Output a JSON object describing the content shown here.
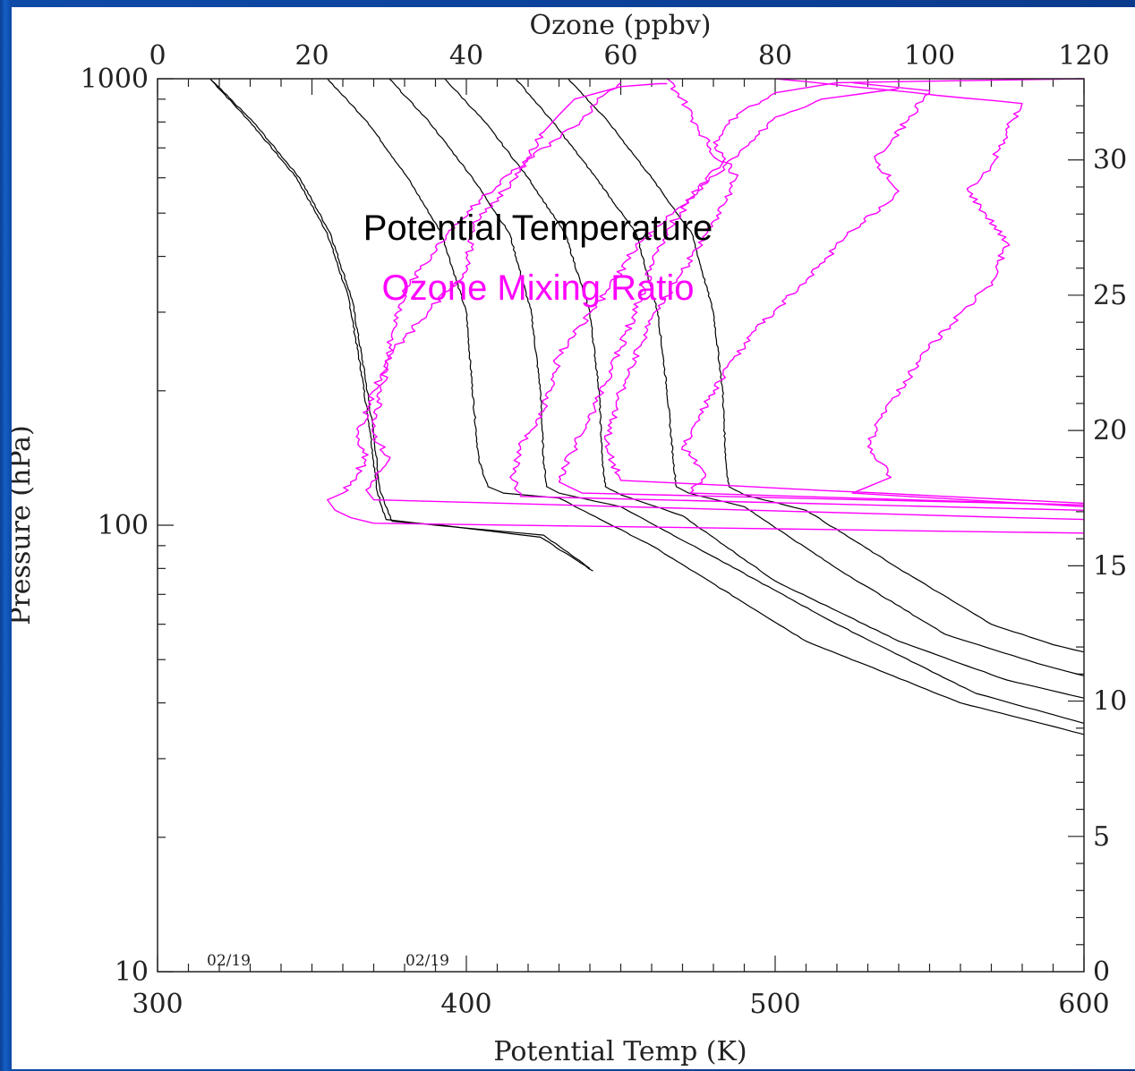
{
  "chart_data": {
    "type": "line",
    "title": "",
    "xlabel_bottom": "Potential Temp (K)",
    "xlabel_top": "Ozone (ppbv)",
    "ylabel_left": "Pressure (hPa)",
    "ylabel_right": "",
    "x_bottom_range": [
      300,
      600
    ],
    "x_bottom_ticks": [
      "300",
      "400",
      "500",
      "600"
    ],
    "x_top_range": [
      0,
      120
    ],
    "x_top_ticks": [
      "0",
      "20",
      "40",
      "60",
      "80",
      "100",
      "120"
    ],
    "y_left_scale": "log",
    "y_left_range": [
      1000,
      10
    ],
    "y_left_ticks": [
      "10",
      "100",
      "1000"
    ],
    "y_right_range": [
      0,
      33
    ],
    "y_right_ticks": [
      "0",
      "5",
      "10",
      "15",
      "20",
      "25",
      "30"
    ],
    "grid": false,
    "legend_placement": "top-center",
    "legend": [
      {
        "label": "Potential Temperature",
        "color": "#000000"
      },
      {
        "label": "Ozone Mixing Ratio",
        "color": "#ff00ff"
      }
    ],
    "annotations": [
      {
        "text": "02/19",
        "x": 322,
        "y": 1000
      },
      {
        "text": "02/19",
        "x": 388,
        "y": 1000
      }
    ],
    "series": [
      {
        "kind": "potential_temperature",
        "color": "#000000",
        "points": [
          [
            317,
            1000
          ],
          [
            330,
            800
          ],
          [
            345,
            600
          ],
          [
            355,
            450
          ],
          [
            362,
            320
          ],
          [
            366,
            220
          ],
          [
            369,
            160
          ],
          [
            371,
            120
          ],
          [
            374,
            103
          ],
          [
            390,
            100
          ],
          [
            425,
            95
          ],
          [
            440,
            80
          ]
        ]
      },
      {
        "kind": "potential_temperature",
        "color": "#000000",
        "points": [
          [
            317,
            1000
          ],
          [
            331,
            800
          ],
          [
            346,
            600
          ],
          [
            356,
            450
          ],
          [
            363,
            320
          ],
          [
            367,
            220
          ],
          [
            370,
            160
          ],
          [
            372,
            120
          ],
          [
            376,
            102
          ],
          [
            392,
            100
          ],
          [
            424,
            94
          ],
          [
            441,
            79
          ]
        ]
      },
      {
        "kind": "potential_temperature",
        "color": "#000000",
        "points": [
          [
            355,
            1000
          ],
          [
            368,
            800
          ],
          [
            381,
            600
          ],
          [
            392,
            450
          ],
          [
            400,
            300
          ],
          [
            402,
            200
          ],
          [
            404,
            140
          ],
          [
            407,
            122
          ],
          [
            412,
            118
          ],
          [
            430,
            115
          ],
          [
            460,
            90
          ],
          [
            510,
            55
          ],
          [
            560,
            40
          ],
          [
            600,
            34
          ]
        ]
      },
      {
        "kind": "potential_temperature",
        "color": "#000000",
        "points": [
          [
            375,
            1000
          ],
          [
            388,
            800
          ],
          [
            402,
            600
          ],
          [
            414,
            450
          ],
          [
            421,
            300
          ],
          [
            424,
            200
          ],
          [
            425,
            140
          ],
          [
            426,
            122
          ],
          [
            430,
            118
          ],
          [
            450,
            110
          ],
          [
            480,
            85
          ],
          [
            520,
            60
          ],
          [
            565,
            42
          ],
          [
            600,
            36
          ]
        ]
      },
      {
        "kind": "potential_temperature",
        "color": "#000000",
        "points": [
          [
            393,
            1000
          ],
          [
            406,
            800
          ],
          [
            420,
            600
          ],
          [
            432,
            450
          ],
          [
            440,
            300
          ],
          [
            443,
            200
          ],
          [
            444,
            140
          ],
          [
            445,
            122
          ],
          [
            450,
            117
          ],
          [
            470,
            105
          ],
          [
            500,
            75
          ],
          [
            540,
            55
          ],
          [
            575,
            45
          ],
          [
            600,
            41
          ]
        ]
      },
      {
        "kind": "potential_temperature",
        "color": "#000000",
        "points": [
          [
            416,
            1000
          ],
          [
            428,
            800
          ],
          [
            442,
            600
          ],
          [
            455,
            450
          ],
          [
            462,
            300
          ],
          [
            465,
            200
          ],
          [
            467,
            140
          ],
          [
            468,
            122
          ],
          [
            472,
            118
          ],
          [
            490,
            110
          ],
          [
            520,
            80
          ],
          [
            555,
            57
          ],
          [
            585,
            49
          ],
          [
            600,
            46
          ]
        ]
      },
      {
        "kind": "potential_temperature",
        "color": "#000000",
        "points": [
          [
            433,
            1000
          ],
          [
            446,
            800
          ],
          [
            460,
            600
          ],
          [
            473,
            450
          ],
          [
            480,
            300
          ],
          [
            483,
            200
          ],
          [
            484,
            140
          ],
          [
            485,
            122
          ],
          [
            490,
            117
          ],
          [
            510,
            108
          ],
          [
            540,
            80
          ],
          [
            570,
            60
          ],
          [
            590,
            54
          ],
          [
            600,
            52
          ]
        ]
      },
      {
        "kind": "ozone_mixing_ratio",
        "color": "#ff00ff",
        "points": [
          [
            66,
            975
          ],
          [
            65,
            975
          ],
          [
            60,
            960
          ],
          [
            54,
            900
          ],
          [
            52,
            830
          ],
          [
            50,
            760
          ],
          [
            47,
            620
          ],
          [
            44,
            540
          ],
          [
            41,
            470
          ],
          [
            40,
            370
          ],
          [
            35,
            300
          ],
          [
            30,
            240
          ],
          [
            28,
            200
          ],
          [
            26,
            160
          ],
          [
            27,
            140
          ],
          [
            24,
            118
          ],
          [
            22,
            114
          ],
          [
            23,
            108
          ],
          [
            25,
            104
          ],
          [
            28,
            101
          ],
          [
            120,
            96
          ]
        ]
      },
      {
        "kind": "ozone_mixing_ratio",
        "color": "#ff00ff",
        "points": [
          [
            60,
            980
          ],
          [
            57,
            890
          ],
          [
            54,
            780
          ],
          [
            48,
            660
          ],
          [
            42,
            540
          ],
          [
            36,
            420
          ],
          [
            32,
            330
          ],
          [
            30,
            250
          ],
          [
            29,
            200
          ],
          [
            28,
            160
          ],
          [
            30,
            140
          ],
          [
            27,
            120
          ],
          [
            28,
            114
          ],
          [
            120,
            103
          ]
        ]
      },
      {
        "kind": "ozone_mixing_ratio",
        "color": "#ff00ff",
        "points": [
          [
            66,
            1000
          ],
          [
            68,
            900
          ],
          [
            70,
            780
          ],
          [
            73,
            640
          ],
          [
            68,
            520
          ],
          [
            62,
            420
          ],
          [
            58,
            330
          ],
          [
            52,
            240
          ],
          [
            50,
            180
          ],
          [
            47,
            150
          ],
          [
            46,
            130
          ],
          [
            47,
            116
          ],
          [
            120,
            108
          ]
        ]
      },
      {
        "kind": "ozone_mixing_ratio",
        "color": "#ff00ff",
        "points": [
          [
            96,
            950
          ],
          [
            86,
            900
          ],
          [
            80,
            820
          ],
          [
            76,
            700
          ],
          [
            70,
            560
          ],
          [
            66,
            460
          ],
          [
            63,
            340
          ],
          [
            60,
            250
          ],
          [
            57,
            190
          ],
          [
            54,
            150
          ],
          [
            52,
            125
          ],
          [
            55,
            118
          ],
          [
            120,
            111
          ]
        ]
      },
      {
        "kind": "ozone_mixing_ratio",
        "color": "#ff00ff",
        "points": [
          [
            120,
            1000
          ],
          [
            88,
            980
          ],
          [
            80,
            930
          ],
          [
            75,
            830
          ],
          [
            72,
            720
          ],
          [
            75,
            600
          ],
          [
            72,
            480
          ],
          [
            68,
            370
          ],
          [
            64,
            290
          ],
          [
            60,
            200
          ],
          [
            58,
            150
          ],
          [
            60,
            126
          ],
          [
            120,
            112
          ]
        ]
      },
      {
        "kind": "ozone_mixing_ratio",
        "color": "#ff00ff",
        "points": [
          [
            90,
            980
          ],
          [
            100,
            940
          ],
          [
            97,
            800
          ],
          [
            93,
            660
          ],
          [
            96,
            560
          ],
          [
            89,
            440
          ],
          [
            83,
            340
          ],
          [
            77,
            270
          ],
          [
            72,
            200
          ],
          [
            68,
            150
          ],
          [
            71,
            130
          ],
          [
            69,
            118
          ],
          [
            120,
            111
          ]
        ]
      },
      {
        "kind": "ozone_mixing_ratio",
        "color": "#ff00ff",
        "points": [
          [
            80,
            1000
          ],
          [
            112,
            880
          ],
          [
            110,
            760
          ],
          [
            108,
            640
          ],
          [
            105,
            560
          ],
          [
            110,
            430
          ],
          [
            108,
            350
          ],
          [
            100,
            250
          ],
          [
            95,
            190
          ],
          [
            92,
            150
          ],
          [
            95,
            128
          ],
          [
            90,
            118
          ],
          [
            120,
            110
          ]
        ]
      }
    ]
  }
}
